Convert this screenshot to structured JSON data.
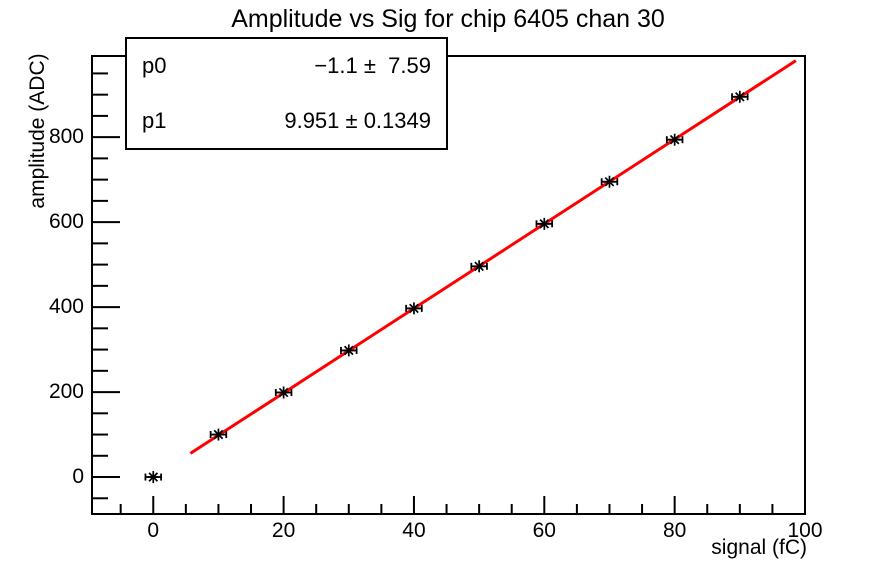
{
  "title": "Amplitude vs Sig for chip 6405 chan 30",
  "stats_box": {
    "rows": [
      {
        "name": "p0",
        "value": "−1.1 ±  7.59"
      },
      {
        "name": "p1",
        "value": "9.951 ± 0.1349"
      }
    ]
  },
  "axes": {
    "x_title": "signal (fC)",
    "y_title": "amplitude (ADC)"
  },
  "colors": {
    "background": "#ffffff",
    "frame": "#000000",
    "marker": "#000000",
    "fit_line": "#ff0000"
  },
  "chart_data": {
    "type": "scatter",
    "title": "Amplitude vs Sig for chip 6405 chan 30",
    "xlabel": "signal (fC)",
    "ylabel": "amplitude (ADC)",
    "x": [
      0,
      10,
      20,
      30,
      40,
      50,
      60,
      70,
      80,
      90
    ],
    "y": [
      0,
      100,
      199,
      298,
      397,
      496,
      596,
      695,
      794,
      895
    ],
    "x_err": 1.2,
    "marker": "asterisk",
    "marker_color": "#000000",
    "fit": {
      "type": "linear",
      "p0": -1.1,
      "p0_err": 7.59,
      "p1": 9.951,
      "p1_err": 0.1349,
      "x_range": [
        5.7,
        98.6
      ],
      "line_color": "#ff0000"
    },
    "xlim": [
      -9.4,
      100
    ],
    "ylim": [
      -87,
      991
    ],
    "x_major_ticks": [
      0,
      20,
      40,
      60,
      80,
      100
    ],
    "x_minor_step": 5,
    "y_major_ticks": [
      0,
      200,
      400,
      600,
      800
    ],
    "y_minor_step": 50,
    "grid": false,
    "legend": false
  }
}
